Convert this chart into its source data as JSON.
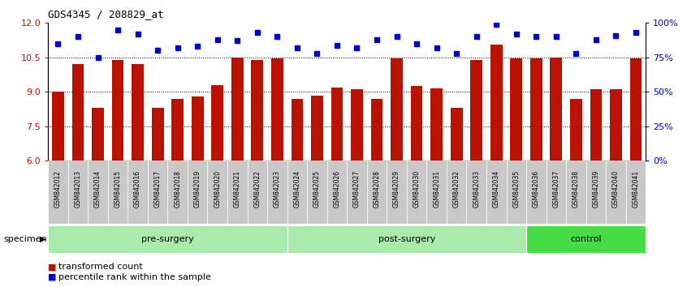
{
  "title": "GDS4345 / 208829_at",
  "categories": [
    "GSM842012",
    "GSM842013",
    "GSM842014",
    "GSM842015",
    "GSM842016",
    "GSM842017",
    "GSM842018",
    "GSM842019",
    "GSM842020",
    "GSM842021",
    "GSM842022",
    "GSM842023",
    "GSM842024",
    "GSM842025",
    "GSM842026",
    "GSM842027",
    "GSM842028",
    "GSM842029",
    "GSM842030",
    "GSM842031",
    "GSM842032",
    "GSM842033",
    "GSM842034",
    "GSM842035",
    "GSM842036",
    "GSM842037",
    "GSM842038",
    "GSM842039",
    "GSM842040",
    "GSM842041"
  ],
  "bar_values": [
    9.0,
    10.2,
    8.3,
    10.4,
    10.2,
    8.3,
    8.7,
    8.8,
    9.3,
    10.5,
    10.4,
    10.45,
    8.7,
    8.85,
    9.2,
    9.1,
    8.7,
    10.45,
    9.25,
    9.15,
    8.3,
    10.4,
    11.05,
    10.45,
    10.45,
    10.5,
    8.7,
    9.1,
    9.1,
    10.45
  ],
  "percentile_values": [
    85,
    90,
    75,
    95,
    92,
    80,
    82,
    83,
    88,
    87,
    93,
    90,
    82,
    78,
    84,
    82,
    88,
    90,
    85,
    82,
    78,
    90,
    99,
    92,
    90,
    90,
    78,
    88,
    91,
    93
  ],
  "groups": [
    {
      "label": "pre-surgery",
      "start": 0,
      "end": 12,
      "color": "#aaeaaa"
    },
    {
      "label": "post-surgery",
      "start": 12,
      "end": 24,
      "color": "#aaeaaa"
    },
    {
      "label": "control",
      "start": 24,
      "end": 30,
      "color": "#44dd44"
    }
  ],
  "ylim": [
    6,
    12
  ],
  "y2lim": [
    0,
    100
  ],
  "yticks": [
    6,
    7.5,
    9,
    10.5,
    12
  ],
  "y2ticks": [
    0,
    25,
    50,
    75,
    100
  ],
  "bar_color": "#BB1100",
  "dot_color": "#0000CC",
  "bg_color": "#FFFFFF",
  "tick_bg_color": "#C8C8C8",
  "legend_bar_label": "transformed count",
  "legend_dot_label": "percentile rank within the sample",
  "specimen_label": "specimen",
  "figsize": [
    8.46,
    3.54
  ],
  "dpi": 100
}
